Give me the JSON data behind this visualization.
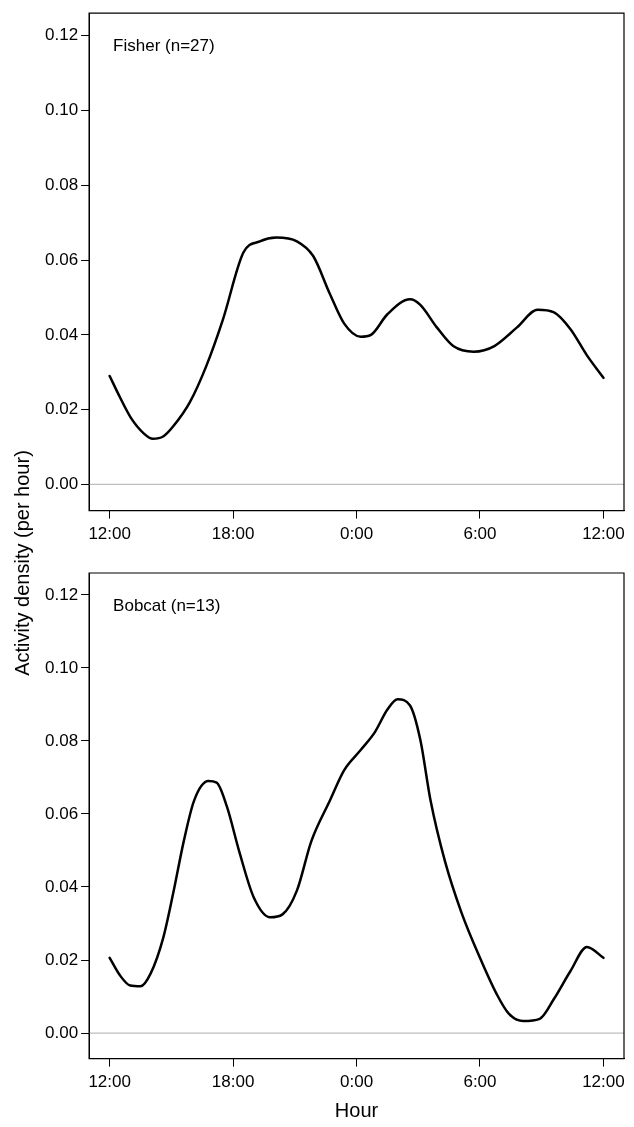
{
  "chart_data": [
    {
      "type": "line",
      "ylabel": "Activity density (per hour)",
      "annotations": [
        "Fisher (n=27)"
      ],
      "x": [
        "--01-01T12:00",
        "--01-01T12:30",
        "--01-01T13:02",
        "--01-01T13:40",
        "--01-01T14:06",
        "--01-01T14:36",
        "--01-01T15:06",
        "--01-01T15:54",
        "--01-01T16:42",
        "--01-01T17:30",
        "--01-01T18:30",
        "--01-01T19:18",
        "--01-01T20:06",
        "--01-01T21:06",
        "--01-01T21:54",
        "--01-01T22:42",
        "--01-01T23:24",
        "--01-02T00:12",
        "--01-02T00:42",
        "--01-02T01:30",
        "--01-02T02:36",
        "--01-02T03:06",
        "--01-02T03:54",
        "--01-02T04:42",
        "--01-02T05:42",
        "--01-02T06:42",
        "--01-02T07:48",
        "--01-02T08:48",
        "--01-02T09:36",
        "--01-02T10:24",
        "--01-02T11:12",
        "--01-02T12:00"
      ],
      "series": [
        {
          "color": "#000000",
          "values": [
            0.029,
            0.0233,
            0.0178,
            0.0136,
            0.0122,
            0.0128,
            0.0156,
            0.022,
            0.0317,
            0.044,
            0.062,
            0.065,
            0.066,
            0.065,
            0.061,
            0.051,
            0.043,
            0.0395,
            0.04,
            0.0455,
            0.0495,
            0.048,
            0.042,
            0.037,
            0.0355,
            0.037,
            0.042,
            0.0467,
            0.046,
            0.0415,
            0.0345,
            0.0285
          ]
        }
      ],
      "xlim": [
        "--01-01T11:00",
        "--01-02T13:00"
      ],
      "xticks": [
        {
          "value": "--01-01T12:00",
          "label": "12:00"
        },
        {
          "value": "--01-01T18:00",
          "label": "18:00"
        },
        {
          "value": "--01-02T00:00",
          "label": "0:00"
        },
        {
          "value": "--01-02T06:00",
          "label": "6:00"
        },
        {
          "value": "--01-02T12:00",
          "label": "12:00"
        }
      ],
      "ylim": [
        -0.007,
        0.126
      ],
      "yticks": [
        {
          "value": 0,
          "label": "0.00"
        },
        {
          "value": 0.02,
          "label": "0.02"
        },
        {
          "value": 0.04,
          "label": "0.04"
        },
        {
          "value": 0.06,
          "label": "0.06"
        },
        {
          "value": 0.08,
          "label": "0.08"
        },
        {
          "value": 0.1,
          "label": "0.10"
        },
        {
          "value": 0.12,
          "label": "0.12"
        }
      ],
      "ref_lines": [
        {
          "axis": "y",
          "value": 0,
          "color": "#bebebe"
        }
      ],
      "grid": false,
      "legend": false,
      "marker": "none",
      "line_style": "solid"
    },
    {
      "type": "line",
      "xlabel": "Hour",
      "annotations": [
        "Bobcat (n=13)"
      ],
      "x": [
        "--01-01T12:00",
        "--01-01T12:30",
        "--01-01T13:00",
        "--01-01T13:30",
        "--01-01T14:00",
        "--01-01T14:36",
        "--01-01T15:06",
        "--01-01T15:36",
        "--01-01T16:06",
        "--01-01T16:48",
        "--01-01T17:12",
        "--01-01T17:42",
        "--01-01T18:18",
        "--01-01T19:00",
        "--01-01T19:48",
        "--01-01T20:24",
        "--01-01T21:06",
        "--01-01T21:48",
        "--01-01T22:42",
        "--01-01T23:24",
        "--01-02T00:12",
        "--01-02T00:54",
        "--01-02T01:30",
        "--01-02T02:00",
        "--01-02T02:36",
        "--01-02T03:06",
        "--01-02T03:36",
        "--01-02T04:18",
        "--01-02T05:06",
        "--01-02T06:00",
        "--01-02T06:48",
        "--01-02T07:24",
        "--01-02T08:06",
        "--01-02T08:54",
        "--01-02T09:36",
        "--01-02T10:24",
        "--01-02T11:12",
        "--01-02T12:00"
      ],
      "series": [
        {
          "color": "#000000",
          "values": [
            0.0206,
            0.0158,
            0.013,
            0.0128,
            0.0164,
            0.026,
            0.0386,
            0.0525,
            0.0636,
            0.069,
            0.0686,
            0.062,
            0.0497,
            0.0372,
            0.0317,
            0.0325,
            0.039,
            0.0525,
            0.0636,
            0.072,
            0.0775,
            0.0825,
            0.0886,
            0.0914,
            0.0897,
            0.0803,
            0.0636,
            0.047,
            0.033,
            0.0206,
            0.0108,
            0.0053,
            0.0033,
            0.0039,
            0.0094,
            0.017,
            0.0236,
            0.0206
          ]
        }
      ],
      "xlim": [
        "--01-01T11:00",
        "--01-02T13:00"
      ],
      "xticks": [
        {
          "value": "--01-01T12:00",
          "label": "12:00"
        },
        {
          "value": "--01-01T18:00",
          "label": "18:00"
        },
        {
          "value": "--01-02T00:00",
          "label": "0:00"
        },
        {
          "value": "--01-02T06:00",
          "label": "6:00"
        },
        {
          "value": "--01-02T12:00",
          "label": "12:00"
        }
      ],
      "ylim": [
        -0.007,
        0.126
      ],
      "yticks": [
        {
          "value": 0,
          "label": "0.00"
        },
        {
          "value": 0.02,
          "label": "0.02"
        },
        {
          "value": 0.04,
          "label": "0.04"
        },
        {
          "value": 0.06,
          "label": "0.06"
        },
        {
          "value": 0.08,
          "label": "0.08"
        },
        {
          "value": 0.1,
          "label": "0.10"
        },
        {
          "value": 0.12,
          "label": "0.12"
        }
      ],
      "ref_lines": [
        {
          "axis": "y",
          "value": 0,
          "color": "#bebebe"
        }
      ],
      "grid": false,
      "legend": false,
      "marker": "none",
      "line_style": "solid"
    }
  ]
}
